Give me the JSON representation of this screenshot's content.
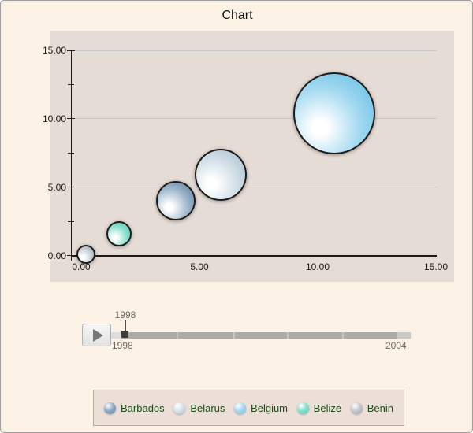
{
  "title": "Chart",
  "chart_data": {
    "type": "bubble",
    "title": "Chart",
    "x_axis": {
      "range": [
        0,
        15
      ],
      "tick_values": [
        0,
        5,
        10,
        15
      ],
      "tick_labels": [
        "0.00",
        "5.00",
        "10.00",
        "15.00"
      ],
      "minor_tick_values": [
        2.5,
        7.5,
        12.5
      ]
    },
    "y_axis": {
      "range": [
        0,
        15
      ],
      "tick_values": [
        15,
        10,
        5,
        0
      ],
      "tick_labels": [
        "15.00",
        "10.00",
        "5.00",
        "0.00"
      ],
      "minor_tick_values": [
        2.5,
        7.5,
        12.5
      ]
    },
    "grid": "horizontal-major-only",
    "points": [
      {
        "name": "Barbados",
        "x": 4.0,
        "y": 4.0,
        "radius_px": 25,
        "color": "#54799e",
        "color_mid": "#9cb4ca",
        "highlight": "#ffffff"
      },
      {
        "name": "Belarus",
        "x": 5.9,
        "y": 5.9,
        "radius_px": 33,
        "color": "#a4bcca",
        "color_mid": "#cfdde6",
        "highlight": "#ffffff"
      },
      {
        "name": "Belgium",
        "x": 10.7,
        "y": 10.4,
        "radius_px": 52,
        "color": "#5fb9e2",
        "color_mid": "#9ed7f0",
        "highlight": "#ffffff"
      },
      {
        "name": "Belize",
        "x": 1.6,
        "y": 1.6,
        "radius_px": 16,
        "color": "#4cc4ae",
        "color_mid": "#8adfcd",
        "highlight": "#ffffff"
      },
      {
        "name": "Benin",
        "x": 0.2,
        "y": 0.1,
        "radius_px": 12,
        "color": "#989fa8",
        "color_mid": "#c9ced3",
        "highlight": "#ffffff"
      }
    ]
  },
  "slider": {
    "play_icon": "play-triangle",
    "current_label": "1998",
    "start_label": "1998",
    "end_label": "2004"
  },
  "legend": {
    "text_color": "#1e4d1e",
    "items": [
      {
        "label": "Barbados",
        "color": "#5b80a4",
        "color_mid": "#92abc6"
      },
      {
        "label": "Belarus",
        "color": "#b3c8d4",
        "color_mid": "#d7e4ec"
      },
      {
        "label": "Belgium",
        "color": "#6fc2e8",
        "color_mid": "#a9d9f2"
      },
      {
        "label": "Belize",
        "color": "#52c9b2",
        "color_mid": "#8ce0cd"
      },
      {
        "label": "Benin",
        "color": "#9aa2ab",
        "color_mid": "#c5cbd1"
      }
    ]
  },
  "colors": {
    "page_background": "#fcf2e6",
    "plot_background": "#e6dcd6",
    "gridline": "#c6c5c6",
    "axis": "#1a1a1a",
    "legend_background": "#ebdfd7",
    "slider_track": "#ababab",
    "slider_thumb": "#3d3d3d",
    "slider_text": "#6e6a66"
  }
}
